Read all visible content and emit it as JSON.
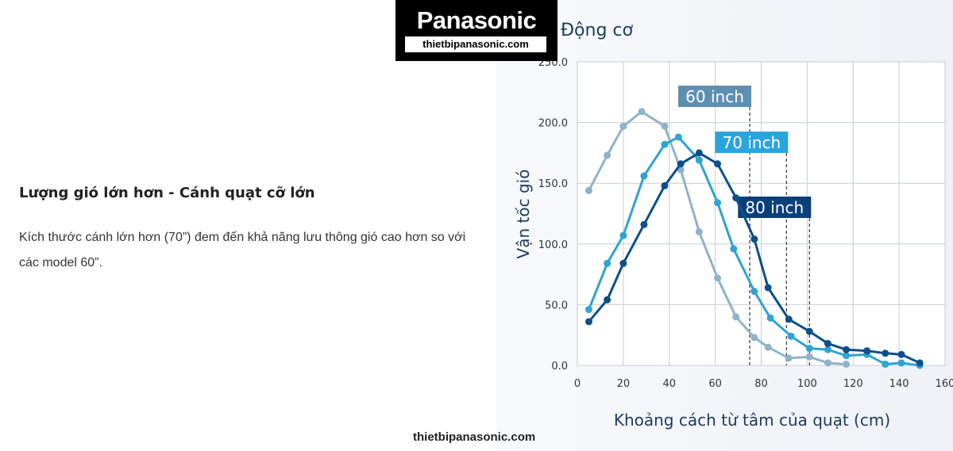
{
  "logo": {
    "brand": "Panasonic",
    "site": "thietbipanasonic.com"
  },
  "article": {
    "heading": "Lượng gió lớn hơn - Cánh quạt cỡ lớn",
    "paragraph": "Kích thước cánh lớn hơn (70”) đem đến khả năng lưu thông gió cao hơn so với các model 60”."
  },
  "footer": "thietbipanasonic.com",
  "chart_data": {
    "type": "line",
    "title": "Động cơ",
    "x_label": "Khoảng cách từ tâm của quạt (cm)",
    "y_label": "Vận tốc gió",
    "xlim": [
      0,
      160
    ],
    "xticks": [
      0,
      20,
      40,
      60,
      80,
      100,
      120,
      140,
      160
    ],
    "ylim": [
      0,
      250
    ],
    "yticks": [
      {
        "value": 0,
        "label": "0.0"
      },
      {
        "value": 50,
        "label": "50.0"
      },
      {
        "value": 100,
        "label": "100.0"
      },
      {
        "value": 150,
        "label": "150.0"
      },
      {
        "value": 200,
        "label": "200.0"
      },
      {
        "value": 250,
        "label": "250.0"
      }
    ],
    "grid": true,
    "series": [
      {
        "name": "60 inch",
        "color": "#8fb3c9",
        "label_color": "#5f8fb0",
        "marker_x": 75,
        "x": [
          5,
          13,
          20,
          28,
          38,
          45,
          53,
          61,
          69,
          77,
          83,
          92,
          101,
          109,
          117
        ],
        "values": [
          144,
          173,
          197,
          209,
          197,
          161,
          110,
          72,
          40,
          23,
          15,
          6,
          7,
          2,
          1
        ]
      },
      {
        "name": "70 inch",
        "color": "#2fa3d2",
        "label_color": "#2aa5dc",
        "marker_x": 91,
        "x": [
          5,
          13,
          20,
          29,
          38,
          44,
          53,
          61,
          68,
          77,
          84,
          93,
          101,
          109,
          117,
          126,
          134,
          141,
          149
        ],
        "values": [
          46,
          84,
          107,
          156,
          182,
          188,
          169,
          134,
          96,
          61,
          39,
          24,
          14,
          13,
          8,
          9,
          1,
          2,
          0
        ]
      },
      {
        "name": "80 inch",
        "color": "#0d4f8a",
        "label_color": "#0b3f7a",
        "marker_x": 101,
        "x": [
          5,
          13,
          20,
          29,
          38,
          45,
          53,
          61,
          69,
          77,
          83,
          92,
          101,
          109,
          117,
          126,
          134,
          141,
          149
        ],
        "values": [
          36,
          54,
          84,
          116,
          148,
          166,
          175,
          166,
          138,
          104,
          64,
          38,
          28,
          18,
          13,
          12,
          10,
          9,
          2
        ]
      }
    ]
  }
}
